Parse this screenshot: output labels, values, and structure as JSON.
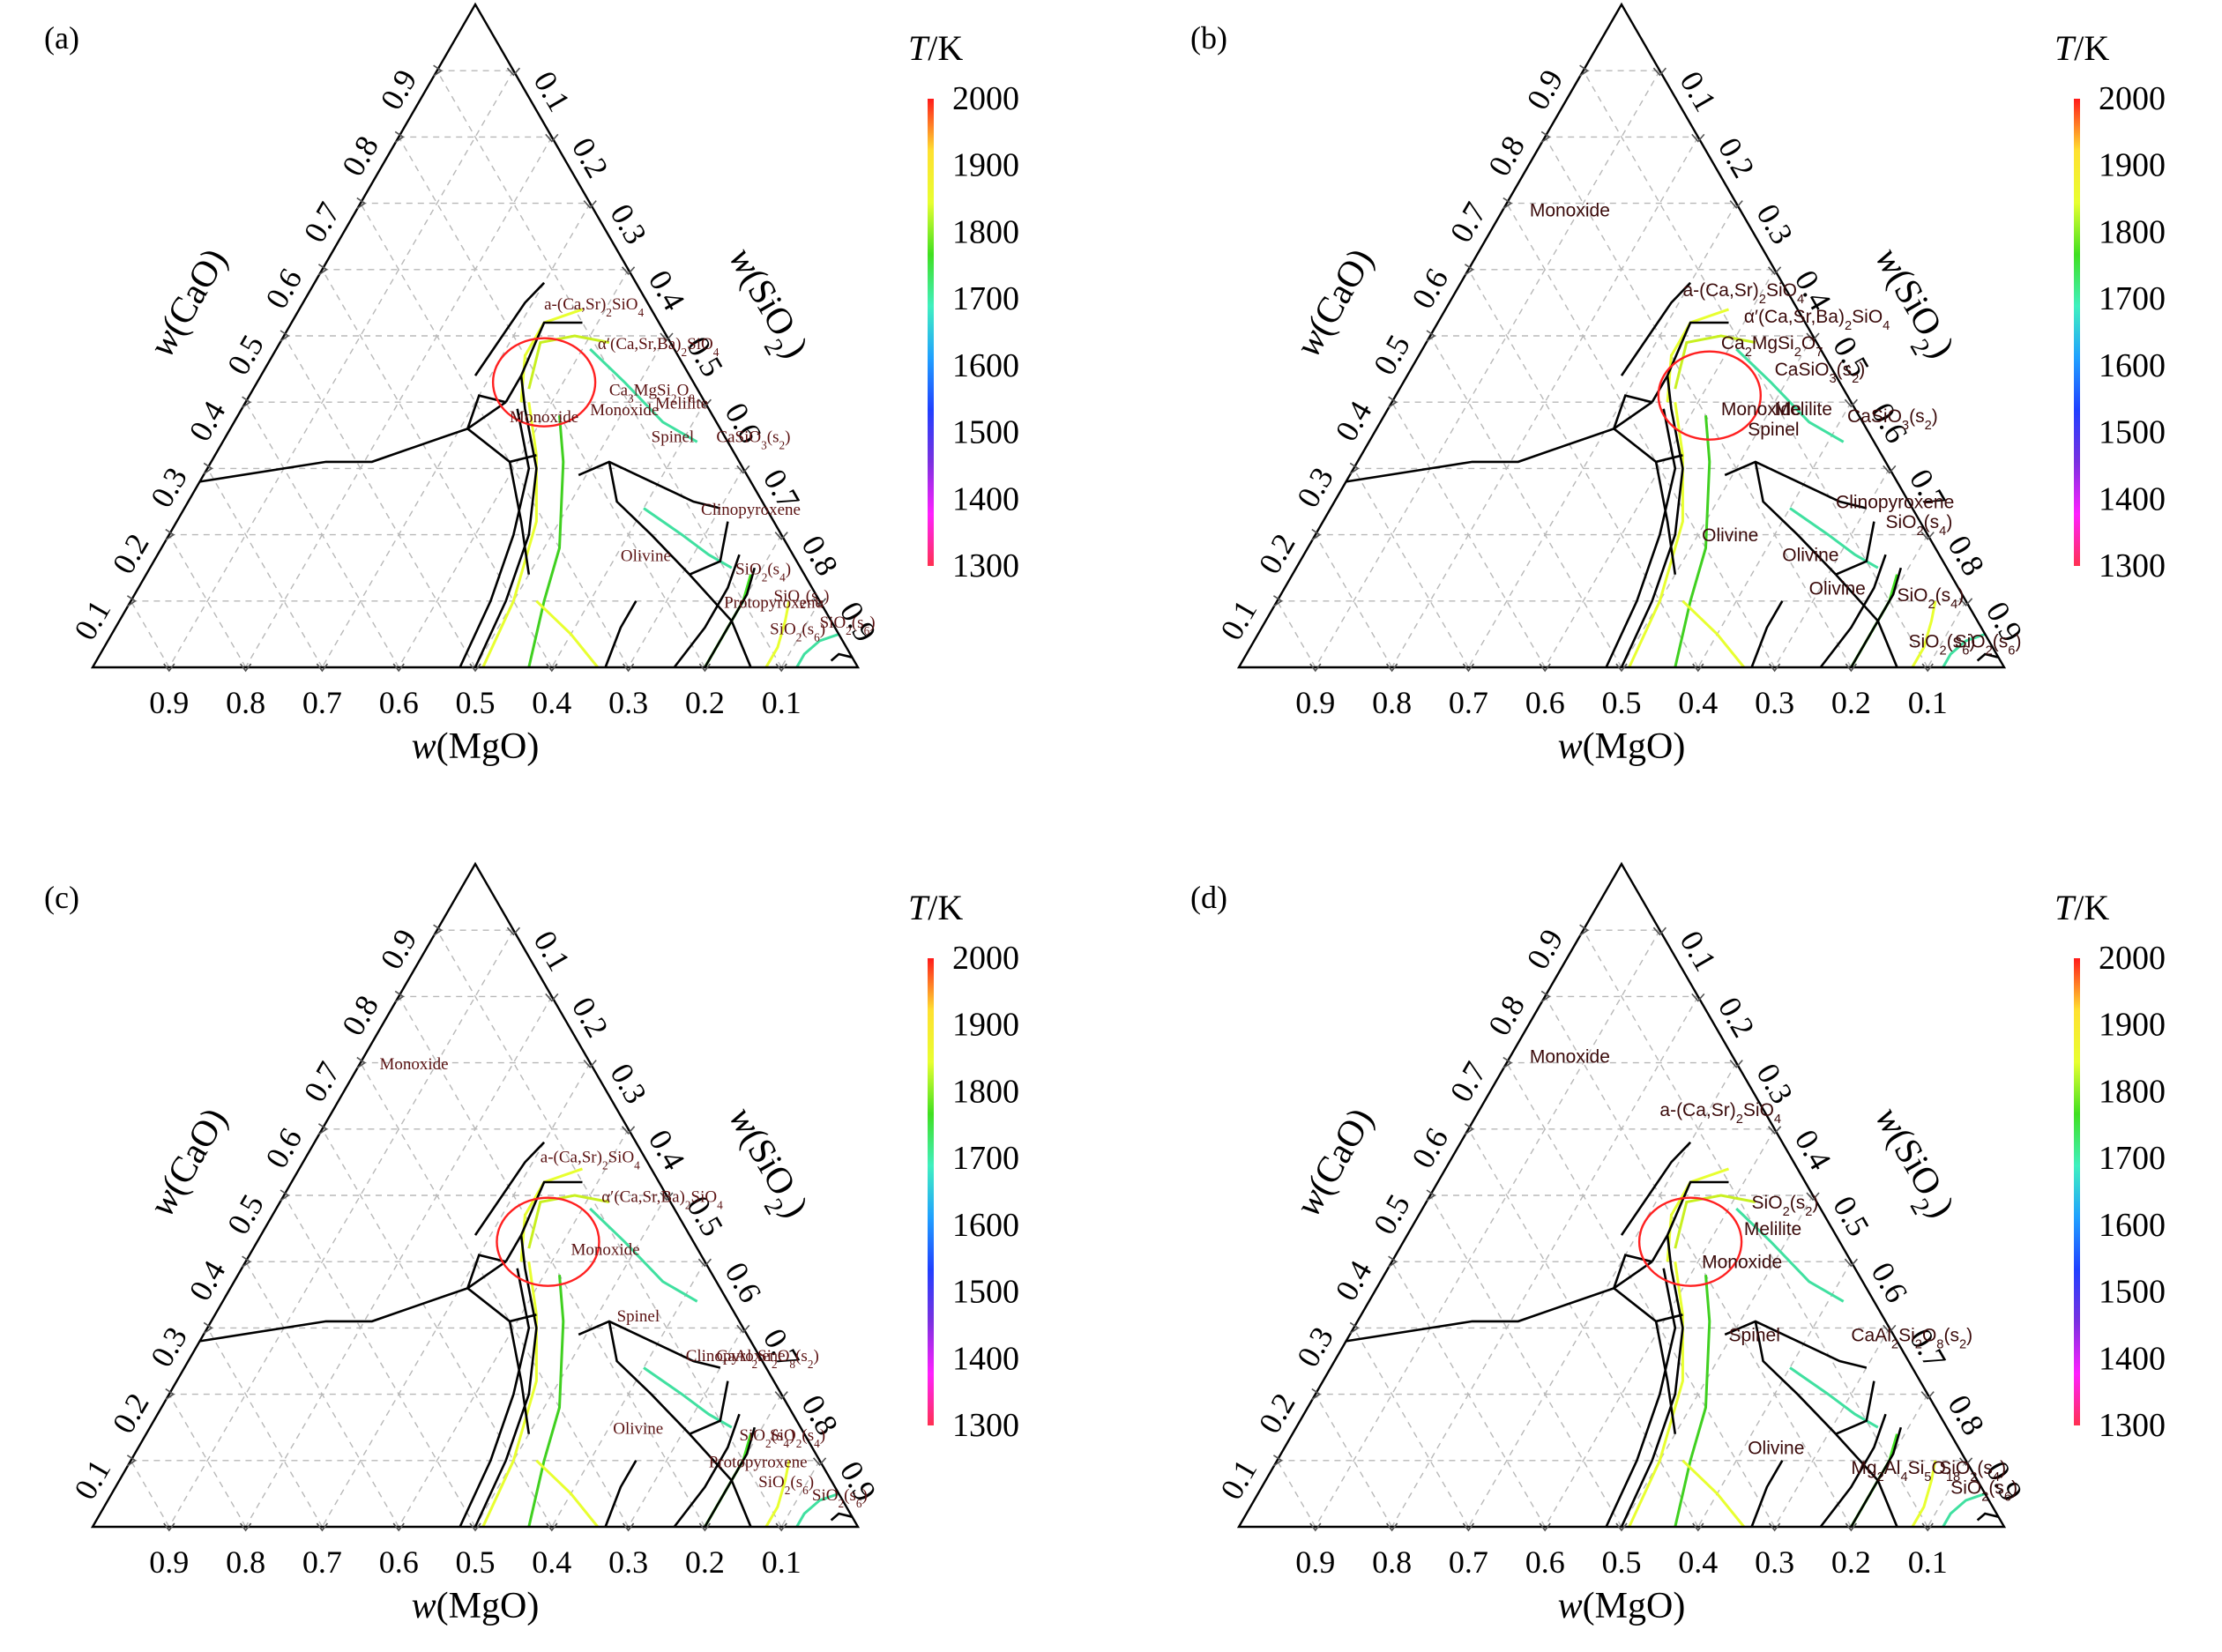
{
  "panels": [
    {
      "label": "(a)",
      "phases": [
        "Monoxide",
        "a-(Ca,Sr)2SiO4",
        "α′(Ca,Sr,Ba)2SiO4",
        "Ca3MgSi2O8",
        "Monoxide",
        "Melilite",
        "Spinel",
        "CaSiO3(s2)",
        "Clinopyroxene",
        "SiO2(s4)",
        "Olivine",
        "SiO2(s4)",
        "Protopyroxene",
        "SiO2(s6)",
        "SiO2(s6)"
      ],
      "phase_pos": [
        [
          0.27,
          0.37
        ],
        [
          0.14,
          0.54
        ],
        [
          0.1,
          0.48
        ],
        [
          0.12,
          0.41
        ],
        [
          0.16,
          0.38
        ],
        [
          0.07,
          0.39
        ],
        [
          0.1,
          0.34
        ],
        [
          0.015,
          0.34
        ],
        [
          0.09,
          0.23
        ],
        [
          0.09,
          0.14
        ],
        [
          0.23,
          0.16
        ],
        [
          0.06,
          0.1
        ],
        [
          0.13,
          0.09
        ],
        [
          0.09,
          0.05
        ],
        [
          0.02,
          0.06
        ]
      ],
      "red_circle": [
        0.195,
        0.43,
        38
      ],
      "style": "serif"
    },
    {
      "label": "(b)",
      "phases": [
        "Monoxide",
        "a-(Ca,Sr)2SiO4",
        "α′(Ca,Sr,Ba)2SiO4",
        "Ca2MgSi2O7",
        "CaSiO3(s2)",
        "Melilite",
        "Monoxide",
        "Spinel",
        "CaSiO3(s2)",
        "Clinopyroxene",
        "SiO2(s4)",
        "Olivine",
        "Olivine",
        "Olivine",
        "SiO2(s4)",
        "SiO2(s6)",
        "SiO2(s6)"
      ],
      "phase_pos": [
        [
          0.28,
          0.68
        ],
        [
          0.14,
          0.56
        ],
        [
          0.08,
          0.52
        ],
        [
          0.13,
          0.48
        ],
        [
          0.08,
          0.44
        ],
        [
          0.11,
          0.38
        ],
        [
          0.18,
          0.38
        ],
        [
          0.16,
          0.35
        ],
        [
          0.02,
          0.37
        ],
        [
          0.1,
          0.24
        ],
        [
          0.05,
          0.21
        ],
        [
          0.3,
          0.19
        ],
        [
          0.21,
          0.16
        ],
        [
          0.2,
          0.11
        ],
        [
          0.09,
          0.1
        ],
        [
          0.11,
          0.03
        ],
        [
          0.05,
          0.03
        ]
      ],
      "red_circle": [
        0.18,
        0.41,
        38
      ],
      "style": "sans"
    },
    {
      "label": "(c)",
      "phases": [
        "Monoxide",
        "a-(Ca,Sr)2SiO4",
        "α′(Ca,Sr,Ba)2SiO4",
        "Monoxide",
        "Spinel",
        "Clinopyroxene",
        "CaAl2Si2O8(s2)",
        "Olivine",
        "SiO2(s4)",
        "SiO2(s4)",
        "Protopyroxene",
        "SiO2(s6)",
        "SiO2(s6)"
      ],
      "phase_pos": [
        [
          0.28,
          0.69
        ],
        [
          0.14,
          0.55
        ],
        [
          0.09,
          0.49
        ],
        [
          0.17,
          0.41
        ],
        [
          0.16,
          0.31
        ],
        [
          0.1,
          0.25
        ],
        [
          0.06,
          0.25
        ],
        [
          0.25,
          0.14
        ],
        [
          0.09,
          0.13
        ],
        [
          0.05,
          0.13
        ],
        [
          0.15,
          0.09
        ],
        [
          0.1,
          0.06
        ],
        [
          0.04,
          0.04
        ]
      ],
      "red_circle": [
        0.19,
        0.43,
        38
      ],
      "style": "serif"
    },
    {
      "label": "(d)",
      "phases": [
        "Monoxide",
        "a-(Ca,Sr)2SiO4",
        "SiO2(s2)",
        "Melilite",
        "Monoxide",
        "Spinel",
        "CaAl2Si2O8(s2)",
        "Olivine",
        "Mg2Al4Si5O18",
        "SiO2(s4)",
        "SiO2(s6)"
      ],
      "phase_pos": [
        [
          0.27,
          0.7
        ],
        [
          0.14,
          0.62
        ],
        [
          0.09,
          0.48
        ],
        [
          0.12,
          0.44
        ],
        [
          0.2,
          0.39
        ],
        [
          0.22,
          0.28
        ],
        [
          0.06,
          0.28
        ],
        [
          0.28,
          0.11
        ],
        [
          0.16,
          0.08
        ],
        [
          0.045,
          0.08
        ],
        [
          0.045,
          0.05
        ]
      ],
      "red_circle": [
        0.195,
        0.43,
        38
      ],
      "style": "sans"
    }
  ],
  "axes": {
    "left_label": "w(CaO)",
    "right_label": "w(SiO2)",
    "bottom_label": "w(MgO)",
    "ticks": [
      "0.9",
      "0.8",
      "0.7",
      "0.6",
      "0.5",
      "0.4",
      "0.3",
      "0.2",
      "0.1"
    ]
  },
  "colorbar": {
    "title": "T/K",
    "ticks": [
      "2000",
      "1900",
      "1800",
      "1700",
      "1600",
      "1500",
      "1400",
      "1300"
    ],
    "stops": [
      "#ff1a1a",
      "#ffe030",
      "#e8ff30",
      "#40e020",
      "#40f0c0",
      "#20a0ff",
      "#2040ff",
      "#7a30e0",
      "#ff20ff",
      "#ff3050"
    ]
  },
  "colors": {
    "boundary": "#000000",
    "region_label": "#5a1212",
    "circle": "#ff2020",
    "grid": "#b0b0b0"
  }
}
